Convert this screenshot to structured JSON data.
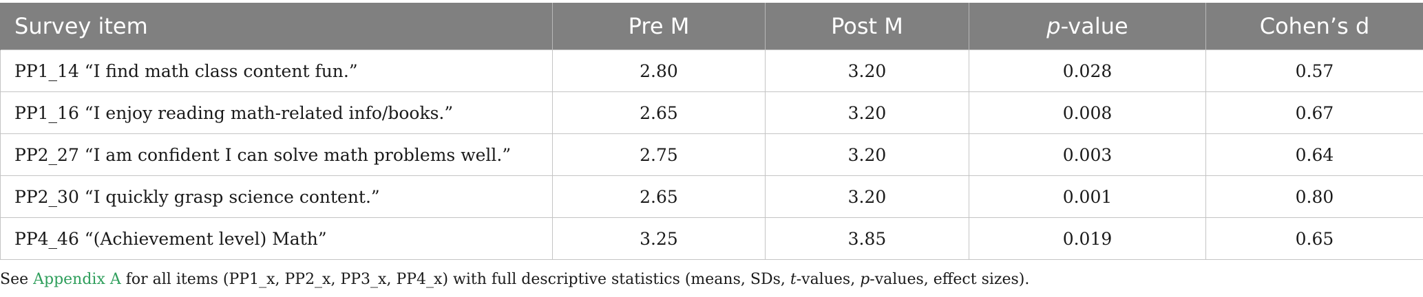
{
  "table": {
    "headers": {
      "item": "Survey item",
      "pre": "Pre M",
      "post": "Post M",
      "p_italic": "p",
      "p_rest": "-value",
      "d": "Cohen’s d"
    },
    "rows": [
      {
        "item": "PP1_14 “I find math class content fun.”",
        "pre": "2.80",
        "post": "3.20",
        "p": "0.028",
        "d": "0.57"
      },
      {
        "item": "PP1_16 “I enjoy reading math-related info/books.”",
        "pre": "2.65",
        "post": "3.20",
        "p": "0.008",
        "d": "0.67"
      },
      {
        "item": "PP2_27 “I am confident I can solve math problems well.”",
        "pre": "2.75",
        "post": "3.20",
        "p": "0.003",
        "d": "0.64"
      },
      {
        "item": "PP2_30 “I quickly grasp science content.”",
        "pre": "2.65",
        "post": "3.20",
        "p": "0.001",
        "d": "0.80"
      },
      {
        "item": "PP4_46 “(Achievement level) Math”",
        "pre": "3.25",
        "post": "3.85",
        "p": "0.019",
        "d": "0.65"
      }
    ]
  },
  "footnote": {
    "see": "See ",
    "link": "Appendix A",
    "text1": " for all items (PP1_x, PP2_x, PP3_x, PP4_x) with full descriptive statistics (means, SDs, ",
    "t_italic": "t",
    "text2": "-values, ",
    "p_italic": "p",
    "text3": "-values, effect sizes)."
  },
  "colors": {
    "header_bg": "#808080",
    "header_text": "#ffffff",
    "link": "#2e9e5b"
  }
}
